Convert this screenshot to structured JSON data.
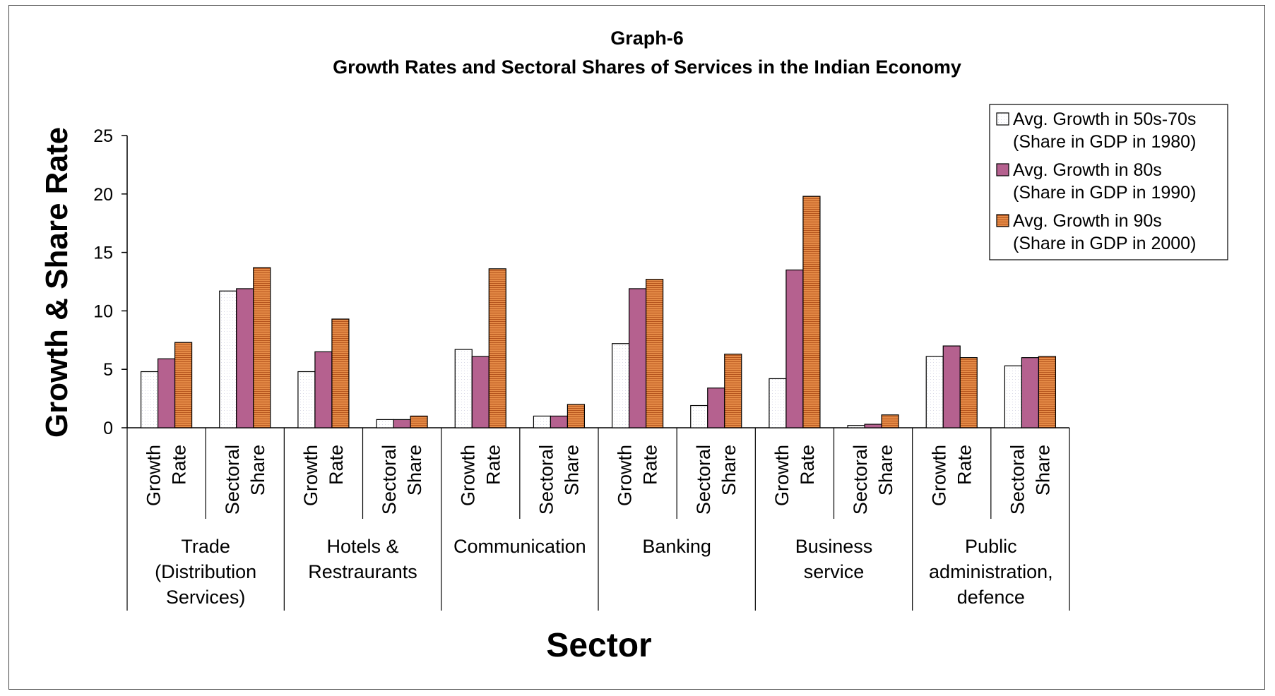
{
  "chart_data": {
    "type": "bar",
    "title": "Graph-6",
    "subtitle": "Growth Rates and Sectoral Shares of Services in the Indian Economy",
    "xlabel": "Sector",
    "ylabel": "Growth & Share Rate",
    "ylim": [
      0,
      25
    ],
    "yticks": [
      "0",
      "5",
      "10",
      "15",
      "20",
      "25"
    ],
    "grid": false,
    "legend_position": "top-right",
    "groups": [
      {
        "label_lines": [
          "Trade",
          "(Distribution",
          "Services)"
        ],
        "subcategories": [
          [
            "Growth",
            "Rate"
          ],
          [
            "Sectoral",
            "Share"
          ]
        ]
      },
      {
        "label_lines": [
          "Hotels &",
          "Restraurants"
        ],
        "subcategories": [
          [
            "Growth",
            "Rate"
          ],
          [
            "Sectoral",
            "Share"
          ]
        ]
      },
      {
        "label_lines": [
          "Communication"
        ],
        "subcategories": [
          [
            "Growth",
            "Rate"
          ],
          [
            "Sectoral",
            "Share"
          ]
        ]
      },
      {
        "label_lines": [
          "Banking"
        ],
        "subcategories": [
          [
            "Growth",
            "Rate"
          ],
          [
            "Sectoral",
            "Share"
          ]
        ]
      },
      {
        "label_lines": [
          "Business",
          "service"
        ],
        "subcategories": [
          [
            "Growth",
            "Rate"
          ],
          [
            "Sectoral",
            "Share"
          ]
        ]
      },
      {
        "label_lines": [
          "Public",
          "administration,",
          "defence"
        ],
        "subcategories": [
          [
            "Growth",
            "Rate"
          ],
          [
            "Sectoral",
            "Share"
          ]
        ]
      }
    ],
    "series": [
      {
        "name_lines": [
          "Avg. Growth in 50s-70s",
          "(Share in GDP in 1980)"
        ],
        "color": "#ffffff",
        "values": [
          4.8,
          11.7,
          4.8,
          0.7,
          6.7,
          1.0,
          7.2,
          1.9,
          4.2,
          0.2,
          6.1,
          5.3
        ]
      },
      {
        "name_lines": [
          "Avg. Growth in 80s",
          "(Share in GDP in 1990)"
        ],
        "color": "#b5618f",
        "values": [
          5.9,
          11.9,
          6.5,
          0.7,
          6.1,
          1.0,
          11.9,
          3.4,
          13.5,
          0.3,
          7.0,
          6.0
        ]
      },
      {
        "name_lines": [
          "Avg. Growth in 90s",
          "(Share in GDP in 2000)"
        ],
        "color": "#d9753a",
        "values": [
          7.3,
          13.7,
          9.3,
          1.0,
          13.6,
          2.0,
          12.7,
          6.3,
          19.8,
          1.1,
          6.0,
          6.1
        ]
      }
    ]
  }
}
